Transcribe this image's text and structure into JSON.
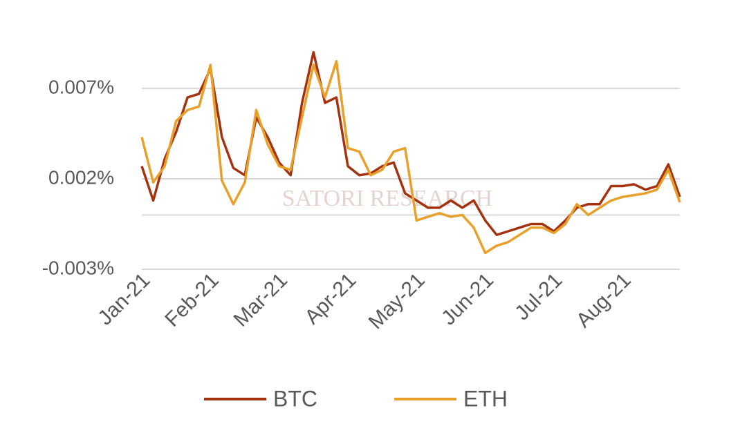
{
  "chart_data": {
    "type": "line",
    "watermark": "SATORI RESEARCH",
    "categories": [
      "Jan-21",
      null,
      null,
      null,
      null,
      null,
      "Feb-21",
      null,
      null,
      null,
      null,
      null,
      "Mar-21",
      null,
      null,
      null,
      null,
      null,
      "Apr-21",
      null,
      null,
      null,
      null,
      null,
      "May-21",
      null,
      null,
      null,
      null,
      null,
      "Jun-21",
      null,
      null,
      null,
      null,
      null,
      "Jul-21",
      null,
      null,
      null,
      null,
      null,
      "Aug-21",
      null,
      null,
      null,
      null,
      null
    ],
    "series": [
      {
        "name": "BTC",
        "color": "#a5320f",
        "values": [
          0.0027,
          0.0008,
          0.0031,
          0.0046,
          0.0065,
          0.0067,
          0.0081,
          0.0043,
          0.0026,
          0.0022,
          0.0054,
          0.0043,
          0.0029,
          0.0022,
          0.0062,
          0.009,
          0.0062,
          0.0065,
          0.0027,
          0.0022,
          0.0023,
          0.0027,
          0.0029,
          0.0012,
          0.0008,
          0.0004,
          0.0004,
          0.0008,
          0.0004,
          0.0008,
          -0.0003,
          -0.0011,
          -0.0009,
          -0.0007,
          -0.0005,
          -0.0005,
          -0.0009,
          -0.0003,
          0.0004,
          0.0006,
          0.0006,
          0.0016,
          0.0016,
          0.0017,
          0.0014,
          0.0016,
          0.0028,
          0.001
        ]
      },
      {
        "name": "ETH",
        "color": "#e8a02a",
        "values": [
          0.0043,
          0.0018,
          0.0027,
          0.0052,
          0.0058,
          0.006,
          0.0083,
          0.0019,
          0.0006,
          0.0018,
          0.0058,
          0.0039,
          0.0027,
          0.0025,
          0.0054,
          0.0083,
          0.0065,
          0.0085,
          0.0037,
          0.0035,
          0.0022,
          0.0025,
          0.0035,
          0.0037,
          -0.0003,
          -0.0001,
          0.0001,
          -0.0001,
          0.0,
          -0.0007,
          -0.0021,
          -0.0017,
          -0.0015,
          -0.0011,
          -0.0007,
          -0.0007,
          -0.001,
          -0.0005,
          0.0006,
          0.0,
          0.0004,
          0.0008,
          0.001,
          0.0011,
          0.0012,
          0.0014,
          0.0025,
          0.0007
        ]
      }
    ],
    "ylim": [
      -0.003,
      0.0095
    ],
    "yticks": [
      {
        "value": -0.003,
        "label": "-0.003%"
      },
      {
        "value": 0
      },
      {
        "value": 0.002,
        "label": "0.002%"
      },
      {
        "value": 0.007,
        "label": "0.007%"
      }
    ],
    "grid": true,
    "legend": "bottom"
  }
}
